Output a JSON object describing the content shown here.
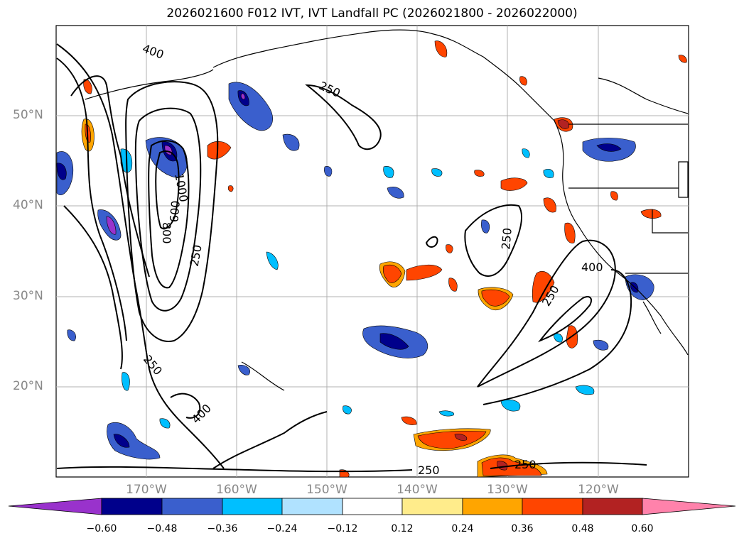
{
  "title": "2026021600 F012 IVT, IVT Landfall PC (2026021800 - 2026022000)",
  "lat_labels": [
    "50°N",
    "40°N",
    "30°N",
    "20°N"
  ],
  "lon_labels": [
    "170°W",
    "160°W",
    "150°W",
    "140°W",
    "130°W",
    "120°W"
  ],
  "map_extent": {
    "lon_min": -180,
    "lon_max": -110,
    "lat_min": 10,
    "lat_max": 60
  },
  "contour_labels": [
    "400",
    "250",
    "1000",
    "800",
    "600",
    "250",
    "250",
    "250",
    "400",
    "250",
    "250",
    "250",
    "400"
  ],
  "colorbar": {
    "ticks": [
      "−0.60",
      "−0.48",
      "−0.36",
      "−0.24",
      "−0.12",
      "0.12",
      "0.24",
      "0.36",
      "0.48",
      "0.60"
    ],
    "colors": [
      "#9932cc",
      "#00008b",
      "#3a5fcd",
      "#00bfff",
      "#b0e2ff",
      "#ffffff",
      "#ffec8b",
      "#ffa500",
      "#ff4500",
      "#b22222",
      "#ff82ab"
    ]
  }
}
